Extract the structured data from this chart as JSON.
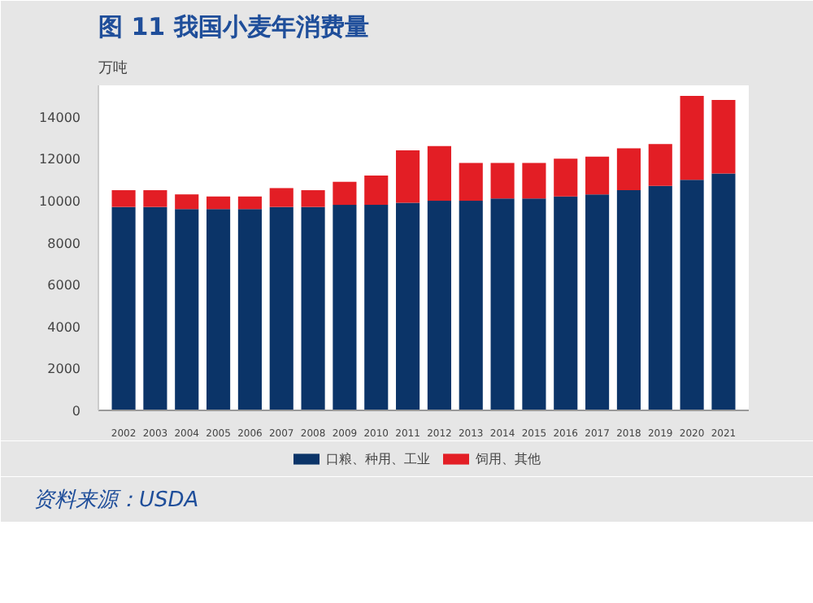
{
  "chart_data": {
    "type": "bar",
    "stacked": true,
    "title": "图 11 我国小麦年消费量",
    "ylabel": "万吨",
    "categories": [
      "2002",
      "2003",
      "2004",
      "2005",
      "2006",
      "2007",
      "2008",
      "2009",
      "2010",
      "2011",
      "2012",
      "2013",
      "2014",
      "2015",
      "2016",
      "2017",
      "2018",
      "2019",
      "2020",
      "2021"
    ],
    "series": [
      {
        "name": "口粮、种用、工业",
        "color": "#0b3468",
        "values": [
          9700,
          9700,
          9600,
          9600,
          9600,
          9700,
          9700,
          9800,
          9800,
          9900,
          10000,
          10000,
          10100,
          10100,
          10200,
          10300,
          10500,
          10700,
          11000,
          11300
        ]
      },
      {
        "name": "饲用、其他",
        "color": "#e31e25",
        "values": [
          800,
          800,
          700,
          600,
          600,
          900,
          800,
          1100,
          1400,
          2500,
          2600,
          1800,
          1700,
          1700,
          1800,
          1800,
          2000,
          2000,
          4000,
          3500
        ]
      }
    ],
    "ylim": [
      0,
      15500
    ],
    "yticks": [
      0,
      2000,
      4000,
      6000,
      8000,
      10000,
      12000,
      14000
    ],
    "grid": false,
    "legend": "bottom",
    "annotations": [
      "资料来源：USDA"
    ]
  }
}
